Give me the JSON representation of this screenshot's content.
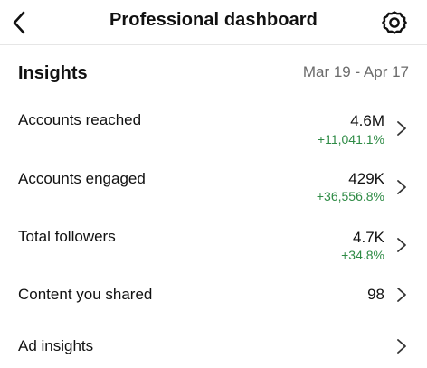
{
  "header": {
    "title": "Professional dashboard",
    "back_icon": "chevron-left-icon",
    "settings_icon": "gear-icon"
  },
  "insights": {
    "title": "Insights",
    "date_range": "Mar 19 - Apr 17"
  },
  "rows": [
    {
      "label": "Accounts reached",
      "value": "4.6M",
      "change": "+11,041.1%"
    },
    {
      "label": "Accounts engaged",
      "value": "429K",
      "change": "+36,556.8%"
    },
    {
      "label": "Total followers",
      "value": "4.7K",
      "change": "+34.8%"
    },
    {
      "label": "Content you shared",
      "value": "98",
      "change": ""
    },
    {
      "label": "Ad insights",
      "value": "",
      "change": ""
    }
  ],
  "colors": {
    "positive_change": "#2e8b45",
    "secondary_text": "#6b6b6b",
    "primary_text": "#111111"
  }
}
